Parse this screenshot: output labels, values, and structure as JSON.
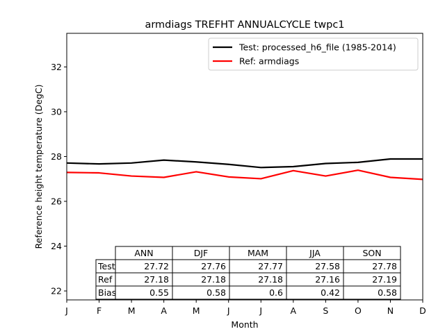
{
  "chart_data": {
    "type": "line",
    "title": "armdiags TREFHT ANNUALCYCLE twpc1",
    "xlabel": "Month",
    "ylabel": "Reference height temperature (DegC)",
    "x_ticks": [
      "J",
      "F",
      "M",
      "A",
      "M",
      "J",
      "J",
      "A",
      "S",
      "O",
      "N",
      "D"
    ],
    "xlim": [
      0,
      11
    ],
    "ylim": [
      21.6,
      33.5
    ],
    "y_ticks": [
      22,
      24,
      26,
      28,
      30,
      32
    ],
    "legend_position": "upper-right",
    "series": [
      {
        "name": "Test: processed_h6_file (1985-2014)",
        "color": "#000000",
        "values": [
          27.71,
          27.67,
          27.71,
          27.84,
          27.76,
          27.65,
          27.51,
          27.55,
          27.69,
          27.74,
          27.89,
          27.89
        ]
      },
      {
        "name": "Ref: armdiags",
        "color": "#ff0000",
        "values": [
          27.29,
          27.27,
          27.13,
          27.07,
          27.32,
          27.09,
          27.01,
          27.37,
          27.13,
          27.39,
          27.07,
          26.98
        ]
      }
    ],
    "table": {
      "columns": [
        "ANN",
        "DJF",
        "MAM",
        "JJA",
        "SON"
      ],
      "rows": [
        {
          "label": "Test",
          "values": [
            "27.72",
            "27.76",
            "27.77",
            "27.58",
            "27.78"
          ]
        },
        {
          "label": "Ref",
          "values": [
            "27.18",
            "27.18",
            "27.18",
            "27.16",
            "27.19"
          ]
        },
        {
          "label": "Bias",
          "values": [
            "0.55",
            "0.58",
            "0.6",
            "0.42",
            "0.58"
          ]
        }
      ]
    }
  }
}
